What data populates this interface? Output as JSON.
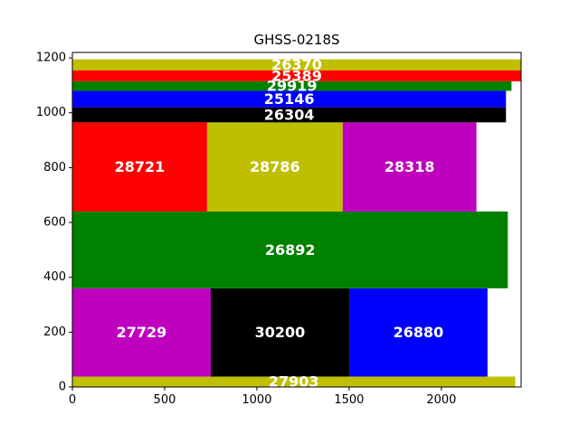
{
  "chart_data": {
    "type": "treemap",
    "title": "GHSS-0218S",
    "xlabel": "",
    "ylabel": "",
    "xlim": [
      0,
      2432
    ],
    "ylim": [
      0,
      1220
    ],
    "xticks": [
      0,
      500,
      1000,
      1500,
      2000
    ],
    "yticks": [
      0,
      200,
      400,
      600,
      800,
      1000,
      1200
    ],
    "grid": false,
    "legend": "none",
    "blocks": [
      {
        "value": 27903,
        "x0": 0,
        "x1": 2400,
        "y0": 0,
        "y1": 38,
        "color": "#bfbf00"
      },
      {
        "value": 27729,
        "x0": 0,
        "x1": 750,
        "y0": 38,
        "y1": 360,
        "color": "#bf00bf"
      },
      {
        "value": 30200,
        "x0": 750,
        "x1": 1500,
        "y0": 38,
        "y1": 360,
        "color": "#000000"
      },
      {
        "value": 26880,
        "x0": 1500,
        "x1": 2250,
        "y0": 38,
        "y1": 360,
        "color": "#0000ff"
      },
      {
        "value": 26892,
        "x0": 0,
        "x1": 2360,
        "y0": 360,
        "y1": 640,
        "color": "#008000"
      },
      {
        "value": 28721,
        "x0": 0,
        "x1": 730,
        "y0": 640,
        "y1": 965,
        "color": "#ff0000"
      },
      {
        "value": 28786,
        "x0": 730,
        "x1": 1465,
        "y0": 640,
        "y1": 965,
        "color": "#bfbf00"
      },
      {
        "value": 28318,
        "x0": 1465,
        "x1": 2190,
        "y0": 640,
        "y1": 965,
        "color": "#bf00bf"
      },
      {
        "value": 26304,
        "x0": 0,
        "x1": 2350,
        "y0": 965,
        "y1": 1020,
        "color": "#000000"
      },
      {
        "value": 25146,
        "x0": 0,
        "x1": 2350,
        "y0": 1020,
        "y1": 1080,
        "color": "#0000ff"
      },
      {
        "value": 29919,
        "x0": 0,
        "x1": 2380,
        "y0": 1080,
        "y1": 1115,
        "color": "#008000"
      },
      {
        "value": 25389,
        "x0": 0,
        "x1": 2432,
        "y0": 1115,
        "y1": 1155,
        "color": "#ff0000"
      },
      {
        "value": 26370,
        "x0": 0,
        "x1": 2432,
        "y0": 1155,
        "y1": 1195,
        "color": "#bfbf00"
      }
    ]
  }
}
